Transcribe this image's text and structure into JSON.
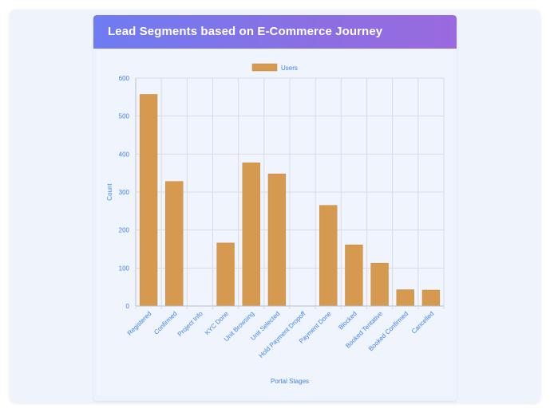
{
  "card": {
    "title": "Lead Segments based on E-Commerce Journey"
  },
  "colors": {
    "bar": "#d59a4f",
    "bar_border": "#c88a3f",
    "text": "#3b82f6",
    "grid": "#d6dbe6",
    "header_start": "#6f7cf2",
    "header_end": "#9a6adf"
  },
  "chart_data": {
    "type": "bar",
    "title": "",
    "xlabel": "Portal Stages",
    "ylabel": "Count",
    "ylim": [
      0,
      600
    ],
    "yticks": [
      0,
      100,
      200,
      300,
      400,
      500,
      600
    ],
    "legend_position": "top",
    "grid": true,
    "categories": [
      "Registered",
      "Confirmed",
      "Project Info",
      "KYC Done",
      "Unit Browsing",
      "Unit Selected",
      "Hold Payment Dropoff",
      "Payment Done",
      "Blocked",
      "Booked Tentative",
      "Booked Confirmed",
      "Cancelled"
    ],
    "series": [
      {
        "name": "Users",
        "values": [
          557,
          328,
          0,
          166,
          377,
          348,
          0,
          265,
          161,
          113,
          43,
          42
        ]
      }
    ]
  }
}
